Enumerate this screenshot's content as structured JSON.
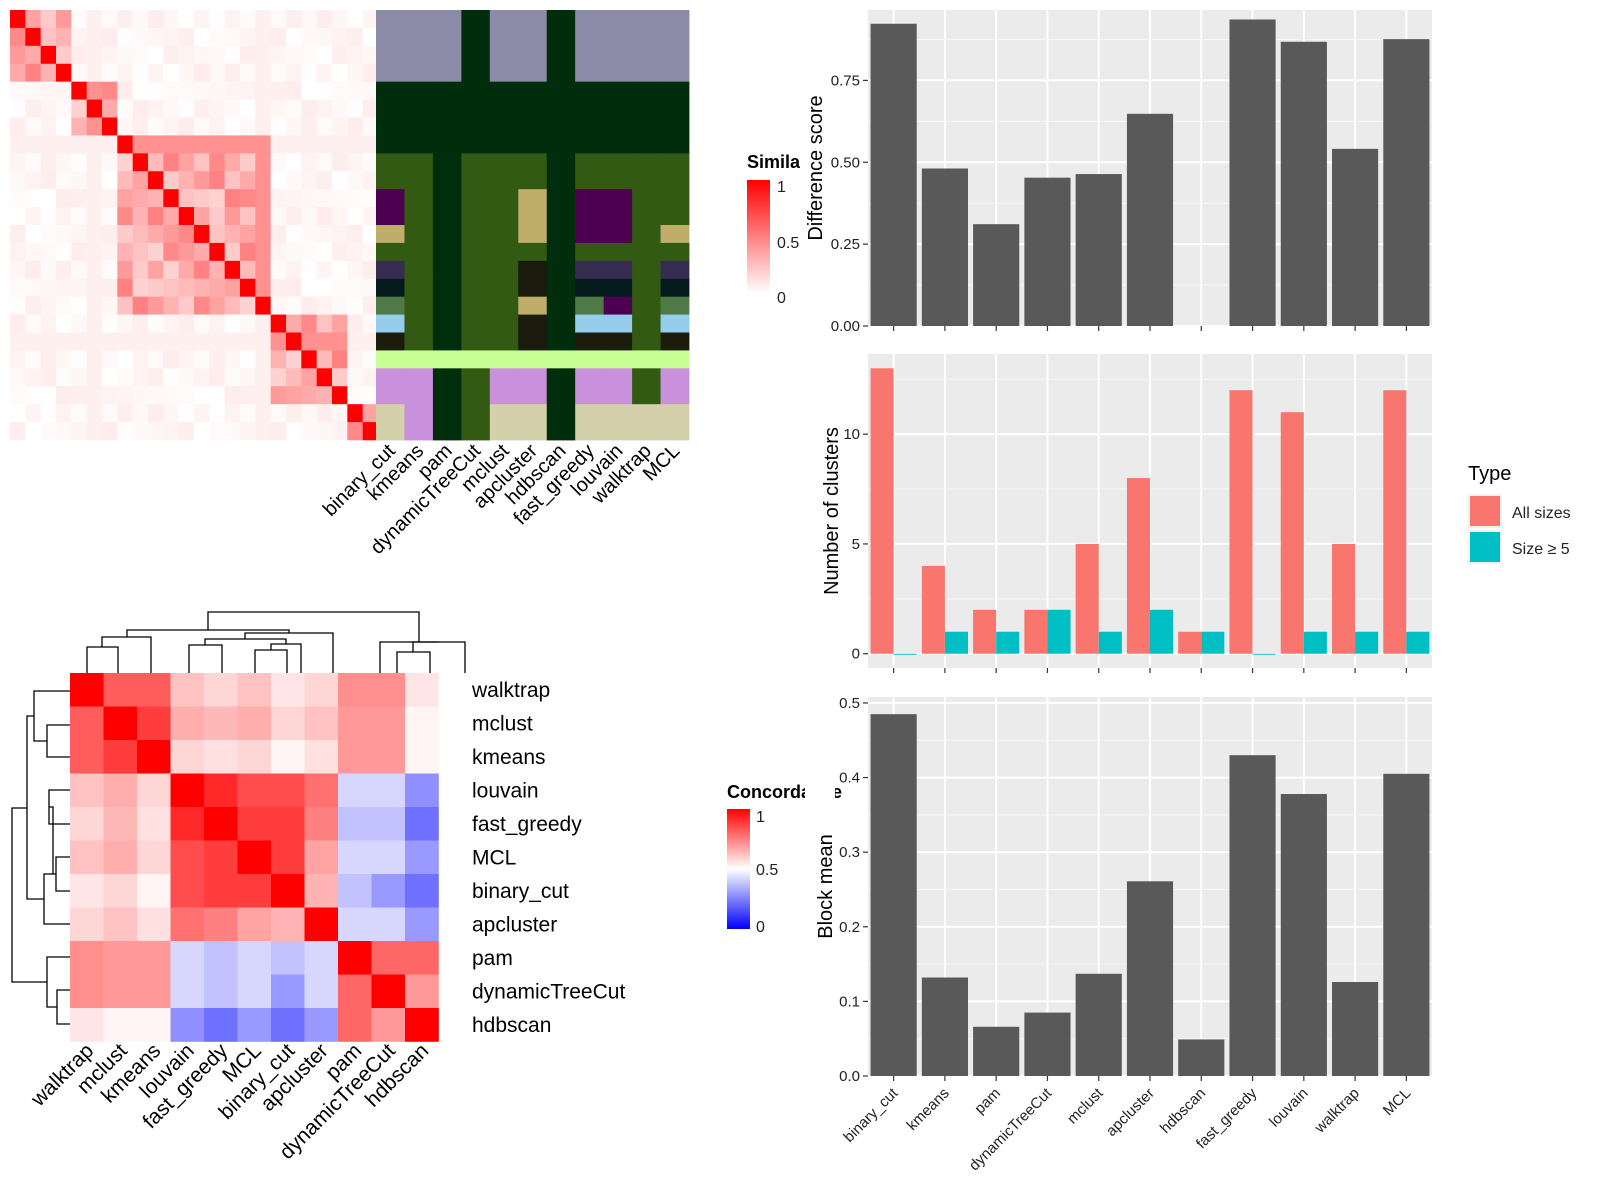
{
  "chart_data": [
    {
      "id": "similarity_heatmap",
      "type": "heatmap",
      "legend_title": "Similarity",
      "legend_ticks": [
        "1",
        "0.5",
        "0"
      ],
      "colors": {
        "low": "#ffffff",
        "high": "#ff0000"
      },
      "size": 24,
      "diagonal_value": 1,
      "blocks": [
        [
          0,
          3
        ],
        [
          4,
          6
        ],
        [
          7,
          16
        ],
        [
          17,
          21
        ],
        [
          22,
          23
        ]
      ],
      "block_value": 0.35,
      "offdiag_value": 0.04
    },
    {
      "id": "cluster_assignment_matrix",
      "type": "heatmap",
      "column_labels": [
        "binary_cut",
        "kmeans",
        "pam",
        "dynamicTreeCut",
        "mclust",
        "apcluster",
        "hdbscan",
        "fast_greedy",
        "louvain",
        "walktrap",
        "MCL"
      ],
      "palette": {
        "a": "#8b8ba7",
        "b": "#002d0c",
        "c": "#325a12",
        "d": "#4d0052",
        "e": "#bfae6a",
        "f": "#372c4f",
        "g": "#051a1c",
        "h": "#4e7a45",
        "i": "#96cceb",
        "j": "#1c1c0d",
        "k": "#c8ff96",
        "l": "#c990db",
        "m": "#d4d0ac",
        "n": "#1a1a0d"
      },
      "rows": [
        {
          "span": 4,
          "cells": [
            "a",
            "a",
            "a",
            "b",
            "a",
            "a",
            "b",
            "a",
            "a",
            "a",
            "a"
          ]
        },
        {
          "span": 4,
          "cells": [
            "b",
            "b",
            "b",
            "b",
            "b",
            "b",
            "b",
            "b",
            "b",
            "b",
            "b"
          ]
        },
        {
          "span": 2,
          "cells": [
            "c",
            "c",
            "b",
            "c",
            "c",
            "c",
            "b",
            "c",
            "c",
            "c",
            "c"
          ]
        },
        {
          "span": 2,
          "cells": [
            "d",
            "c",
            "b",
            "c",
            "c",
            "e",
            "b",
            "d",
            "d",
            "c",
            "c"
          ]
        },
        {
          "span": 1,
          "cells": [
            "e",
            "c",
            "b",
            "c",
            "c",
            "e",
            "b",
            "d",
            "d",
            "c",
            "e"
          ]
        },
        {
          "span": 1,
          "cells": [
            "c",
            "c",
            "b",
            "c",
            "c",
            "c",
            "b",
            "c",
            "c",
            "c",
            "c"
          ]
        },
        {
          "span": 1,
          "cells": [
            "f",
            "c",
            "b",
            "c",
            "c",
            "n",
            "b",
            "f",
            "f",
            "c",
            "f"
          ]
        },
        {
          "span": 1,
          "cells": [
            "g",
            "c",
            "b",
            "c",
            "c",
            "n",
            "b",
            "g",
            "g",
            "c",
            "g"
          ]
        },
        {
          "span": 1,
          "cells": [
            "h",
            "c",
            "b",
            "c",
            "c",
            "e",
            "b",
            "h",
            "d",
            "c",
            "h"
          ]
        },
        {
          "span": 1,
          "cells": [
            "i",
            "c",
            "b",
            "c",
            "c",
            "n",
            "b",
            "i",
            "i",
            "c",
            "i"
          ]
        },
        {
          "span": 1,
          "cells": [
            "j",
            "c",
            "b",
            "c",
            "c",
            "n",
            "b",
            "j",
            "j",
            "c",
            "j"
          ]
        },
        {
          "span": 1,
          "cells": [
            "k",
            "k",
            "k",
            "k",
            "k",
            "k",
            "k",
            "k",
            "k",
            "k",
            "k"
          ]
        },
        {
          "span": 2,
          "cells": [
            "l",
            "l",
            "b",
            "c",
            "l",
            "l",
            "b",
            "l",
            "l",
            "c",
            "l"
          ]
        },
        {
          "span": 2,
          "cells": [
            "m",
            "l",
            "b",
            "c",
            "m",
            "m",
            "b",
            "m",
            "m",
            "m",
            "m"
          ]
        }
      ]
    },
    {
      "id": "concordance_heatmap",
      "type": "heatmap",
      "legend_title": "Concordance",
      "legend_ticks": [
        "1",
        "0.5",
        "0"
      ],
      "labels": [
        "walktrap",
        "mclust",
        "kmeans",
        "louvain",
        "fast_greedy",
        "MCL",
        "binary_cut",
        "apcluster",
        "pam",
        "dynamicTreeCut",
        "hdbscan"
      ],
      "values": [
        [
          1.0,
          0.82,
          0.82,
          0.62,
          0.58,
          0.62,
          0.55,
          0.58,
          0.72,
          0.72,
          0.55
        ],
        [
          0.82,
          1.0,
          0.88,
          0.66,
          0.64,
          0.66,
          0.58,
          0.62,
          0.7,
          0.7,
          0.52
        ],
        [
          0.82,
          0.88,
          1.0,
          0.58,
          0.56,
          0.58,
          0.52,
          0.56,
          0.7,
          0.7,
          0.52
        ],
        [
          0.62,
          0.66,
          0.58,
          1.0,
          0.92,
          0.85,
          0.85,
          0.78,
          0.42,
          0.42,
          0.28
        ],
        [
          0.58,
          0.64,
          0.56,
          0.92,
          1.0,
          0.88,
          0.88,
          0.75,
          0.38,
          0.38,
          0.22
        ],
        [
          0.62,
          0.66,
          0.58,
          0.85,
          0.88,
          1.0,
          0.88,
          0.68,
          0.42,
          0.42,
          0.3
        ],
        [
          0.55,
          0.58,
          0.52,
          0.85,
          0.88,
          0.88,
          1.0,
          0.65,
          0.38,
          0.3,
          0.22
        ],
        [
          0.58,
          0.62,
          0.56,
          0.78,
          0.75,
          0.68,
          0.65,
          1.0,
          0.42,
          0.42,
          0.3
        ],
        [
          0.72,
          0.7,
          0.7,
          0.42,
          0.38,
          0.42,
          0.38,
          0.42,
          1.0,
          0.8,
          0.8
        ],
        [
          0.72,
          0.7,
          0.7,
          0.42,
          0.38,
          0.42,
          0.3,
          0.42,
          0.8,
          1.0,
          0.7
        ],
        [
          0.55,
          0.52,
          0.52,
          0.28,
          0.22,
          0.3,
          0.22,
          0.3,
          0.8,
          0.7,
          1.0
        ]
      ]
    },
    {
      "id": "difference_score",
      "type": "bar",
      "categories": [
        "binary_cut",
        "kmeans",
        "pam",
        "dynamicTreeCut",
        "mclust",
        "apcluster",
        "hdbscan",
        "fast_greedy",
        "louvain",
        "walktrap",
        "MCL"
      ],
      "values": [
        0.923,
        0.481,
        0.311,
        0.453,
        0.464,
        0.648,
        null,
        0.936,
        0.868,
        0.541,
        0.876
      ],
      "ylabel": "Difference score",
      "ylim": [
        0,
        0.965
      ],
      "yticks": [
        0,
        0.25,
        0.5,
        0.75
      ],
      "ytick_labels": [
        "0.00",
        "0.25",
        "0.50",
        "0.75"
      ],
      "bar_color": "#595959",
      "grid": true
    },
    {
      "id": "number_of_clusters",
      "type": "bar",
      "categories": [
        "binary_cut",
        "kmeans",
        "pam",
        "dynamicTreeCut",
        "mclust",
        "apcluster",
        "hdbscan",
        "fast_greedy",
        "louvain",
        "walktrap",
        "MCL"
      ],
      "series": [
        {
          "name": "All sizes",
          "values": [
            13,
            4,
            2,
            2,
            5,
            8,
            1,
            12,
            11,
            5,
            12
          ],
          "color": "#f8766d"
        },
        {
          "name": "Size ≥ 5",
          "values": [
            0,
            1,
            1,
            2,
            1,
            2,
            1,
            0,
            1,
            1,
            1
          ],
          "color": "#00bfc4"
        }
      ],
      "ylabel": "Number of clusters",
      "ylim": [
        -0.65,
        13.65
      ],
      "yticks": [
        0,
        5,
        10
      ],
      "ytick_labels": [
        "0",
        "5",
        "10"
      ],
      "legend_title": "Type",
      "legend_position": "right",
      "grid": true
    },
    {
      "id": "block_mean",
      "type": "bar",
      "categories": [
        "binary_cut",
        "kmeans",
        "pam",
        "dynamicTreeCut",
        "mclust",
        "apcluster",
        "hdbscan",
        "fast_greedy",
        "louvain",
        "walktrap",
        "MCL"
      ],
      "values": [
        0.485,
        0.132,
        0.066,
        0.085,
        0.137,
        0.261,
        0.049,
        0.43,
        0.378,
        0.126,
        0.405
      ],
      "ylabel": "Block mean",
      "ylim": [
        0,
        0.508
      ],
      "yticks": [
        0,
        0.1,
        0.2,
        0.3,
        0.4,
        0.5
      ],
      "ytick_labels": [
        "0.0",
        "0.1",
        "0.2",
        "0.3",
        "0.4",
        "0.5"
      ],
      "bar_color": "#595959",
      "grid": true
    }
  ]
}
